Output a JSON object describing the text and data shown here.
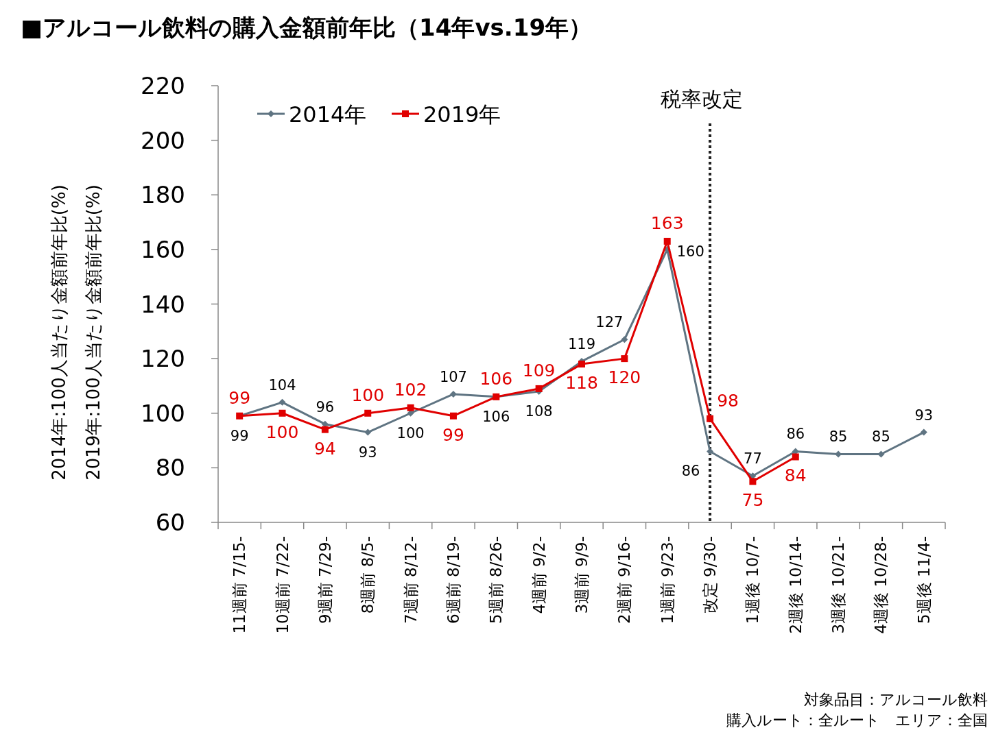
{
  "chart_data": {
    "type": "line",
    "title": "■アルコール飲料の購入金額前年比（14年vs.19年）",
    "ylabel": "2014年:100人当たり金額前年比(%)\n2019年:100人当たり金額前年比(%)",
    "categories": [
      "11週前 7/15-",
      "10週前 7/22-",
      "9週前 7/29-",
      "8週前 8/5-",
      "7週前 8/12-",
      "6週前 8/19-",
      "5週前 8/26-",
      "4週前 9/2-",
      "3週前 9/9-",
      "2週前 9/16-",
      "1週前 9/23-",
      "改定 9/30-",
      "1週後 10/7-",
      "2週後 10/14-",
      "3週後 10/21-",
      "4週後 10/28-",
      "5週後 11/4-"
    ],
    "series": [
      {
        "name": "2014年",
        "color": "#5f7482",
        "marker": "diamond",
        "values": [
          99,
          104,
          96,
          93,
          100,
          107,
          106,
          108,
          119,
          127,
          160,
          86,
          77,
          86,
          85,
          85,
          93
        ]
      },
      {
        "name": "2019年",
        "color": "#e00000",
        "marker": "square",
        "values": [
          99,
          100,
          94,
          100,
          102,
          99,
          106,
          109,
          118,
          120,
          163,
          98,
          75,
          84,
          null,
          null,
          null
        ]
      }
    ],
    "ylim": [
      60,
      220
    ],
    "yticks": [
      60,
      80,
      100,
      120,
      140,
      160,
      180,
      200,
      220
    ],
    "grid": false,
    "legend": "top left",
    "data_labels": true,
    "line_style": "solid",
    "ref_lines": [
      {
        "axis": "x",
        "value": "改定 9/30-",
        "label": "税率改定",
        "line_style": "dotted",
        "color": "#222222"
      }
    ],
    "annotations": [
      "対象品目：アルコール飲料",
      "購入ルート：全ルート　エリア：全国"
    ]
  }
}
